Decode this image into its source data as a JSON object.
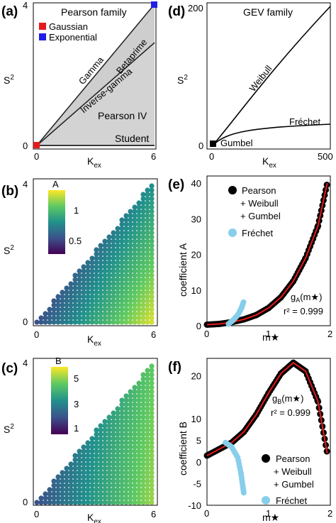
{
  "panels": {
    "a": {
      "tag": "(a)",
      "family": "Pearson family",
      "legend": [
        "Gaussian",
        "Exponential"
      ],
      "curve_labels": [
        "Gamma",
        "Betaprime",
        "Inverse-gamma",
        "Pearson IV",
        "Student"
      ],
      "xlabel_main": "K",
      "xlabel_sub": "ex",
      "ylabel_main": "S",
      "ylabel_sup": "2",
      "xticks": [
        "0",
        "6"
      ],
      "yticks": [
        "0",
        "4"
      ]
    },
    "b": {
      "tag": "(b)",
      "cbar_title": "A",
      "cbar_ticks": [
        "1",
        "0.5"
      ],
      "xlabel_main": "K",
      "xlabel_sub": "ex",
      "ylabel_main": "S",
      "ylabel_sup": "2",
      "xticks": [
        "0",
        "6"
      ],
      "yticks": [
        "0",
        "4"
      ]
    },
    "c": {
      "tag": "(c)",
      "cbar_title": "B",
      "cbar_ticks": [
        "5",
        "3",
        "1"
      ],
      "xlabel_main": "K",
      "xlabel_sub": "ex",
      "ylabel_main": "S",
      "ylabel_sup": "2",
      "xticks": [
        "0",
        "6"
      ],
      "yticks": [
        "0",
        "4"
      ]
    },
    "d": {
      "tag": "(d)",
      "family": "GEV family",
      "curve_labels": [
        "Weibull",
        "Fréchet",
        "Gumbel"
      ],
      "xlabel_main": "K",
      "xlabel_sub": "ex",
      "ylabel_main": "S",
      "ylabel_sup": "2",
      "xticks": [
        "0",
        "500"
      ],
      "yticks": [
        "0",
        "100",
        "200"
      ]
    },
    "e": {
      "tag": "(e)",
      "ylabel": "coefficient A",
      "xlabel": "m★",
      "legend": [
        "Pearson",
        "+ Weibull",
        "+ Gumbel",
        "Fréchet"
      ],
      "fit_label": "g",
      "fit_sub": "A",
      "fit_arg": "(m★)",
      "r2": "r² = 0.999",
      "xticks": [
        "0",
        "1",
        "2"
      ],
      "yticks": [
        "0",
        "10",
        "20",
        "30",
        "40"
      ]
    },
    "f": {
      "tag": "(f)",
      "ylabel": "coefficient B",
      "xlabel": "m★",
      "legend": [
        "Pearson",
        "+ Weibull",
        "+ Gumbel",
        "Fréchet"
      ],
      "fit_label": "g",
      "fit_sub": "B",
      "fit_arg": "(m★)",
      "r2": "r² = 0.999",
      "xticks": [
        "0",
        "1",
        "2"
      ],
      "yticks": [
        "-10",
        "-5",
        "0",
        "5",
        "10",
        "20"
      ]
    }
  },
  "colors": {
    "gaussian": "#e41a1c",
    "exponential": "#1f1fe6",
    "fit": "#e41a1c",
    "frechet": "#87ceeb",
    "region": "#d3d3d3"
  },
  "chart_data": [
    {
      "type": "line",
      "panel": "a",
      "xlim": [
        0,
        6
      ],
      "ylim": [
        0,
        4
      ],
      "series": [
        {
          "name": "Gamma",
          "x": [
            0,
            6
          ],
          "y": [
            0,
            4
          ]
        },
        {
          "name": "Inverse-gamma",
          "x": [
            0,
            6
          ],
          "y": [
            0,
            3.1
          ]
        },
        {
          "name": "Student",
          "x": [
            0,
            6
          ],
          "y": [
            0,
            0
          ]
        }
      ],
      "points": [
        {
          "name": "Gaussian",
          "x": 0,
          "y": 0
        },
        {
          "name": "Exponential",
          "x": 6,
          "y": 4
        }
      ]
    },
    {
      "type": "heatmap",
      "panel": "b",
      "xlim": [
        0,
        6
      ],
      "ylim": [
        0,
        4
      ],
      "colorbar_range": [
        0.3,
        1.3
      ]
    },
    {
      "type": "heatmap",
      "panel": "c",
      "xlim": [
        0,
        6
      ],
      "ylim": [
        0,
        4
      ],
      "colorbar_range": [
        0.5,
        5.5
      ]
    },
    {
      "type": "line",
      "panel": "d",
      "xlim": [
        0,
        500
      ],
      "ylim": [
        0,
        200
      ],
      "series": [
        {
          "name": "Weibull",
          "x": [
            0,
            50,
            100,
            200,
            300,
            400,
            500
          ],
          "y": [
            0,
            62,
            90,
            128,
            157,
            181,
            200
          ]
        },
        {
          "name": "Fréchet",
          "x": [
            0,
            50,
            100,
            200,
            300,
            400,
            500
          ],
          "y": [
            0,
            20,
            25,
            30,
            33,
            35,
            36
          ]
        }
      ],
      "points": [
        {
          "name": "Gumbel",
          "x": 0,
          "y": 3
        }
      ]
    },
    {
      "type": "scatter",
      "panel": "e",
      "xlim": [
        0,
        2
      ],
      "ylim": [
        0,
        42
      ],
      "series": [
        {
          "name": "Pearson + Weibull + Gumbel",
          "x": [
            0.0,
            0.2,
            0.4,
            0.6,
            0.8,
            1.0,
            1.2,
            1.4,
            1.6,
            1.8,
            1.95
          ],
          "y": [
            0.3,
            0.5,
            1.0,
            1.8,
            3.0,
            5.0,
            8.0,
            12.5,
            19,
            28,
            40
          ]
        },
        {
          "name": "Fréchet",
          "x": [
            0.35,
            0.42,
            0.5,
            0.56,
            0.6
          ],
          "y": [
            0.5,
            1.5,
            3.0,
            5.0,
            7.0
          ]
        }
      ]
    },
    {
      "type": "scatter",
      "panel": "f",
      "xlim": [
        0,
        2
      ],
      "ylim": [
        -10,
        24
      ],
      "series": [
        {
          "name": "Pearson + Weibull + Gumbel",
          "x": [
            0.0,
            0.2,
            0.4,
            0.6,
            0.8,
            1.0,
            1.2,
            1.4,
            1.6,
            1.8,
            1.95
          ],
          "y": [
            1.5,
            3.0,
            4.5,
            7.0,
            11.0,
            16.0,
            20.5,
            23.0,
            21.0,
            14.0,
            2.0
          ]
        },
        {
          "name": "Fréchet",
          "x": [
            0.3,
            0.4,
            0.5,
            0.55,
            0.58,
            0.6
          ],
          "y": [
            4.5,
            3.5,
            1.0,
            -2.5,
            -5.5,
            -7.5
          ]
        }
      ]
    }
  ]
}
